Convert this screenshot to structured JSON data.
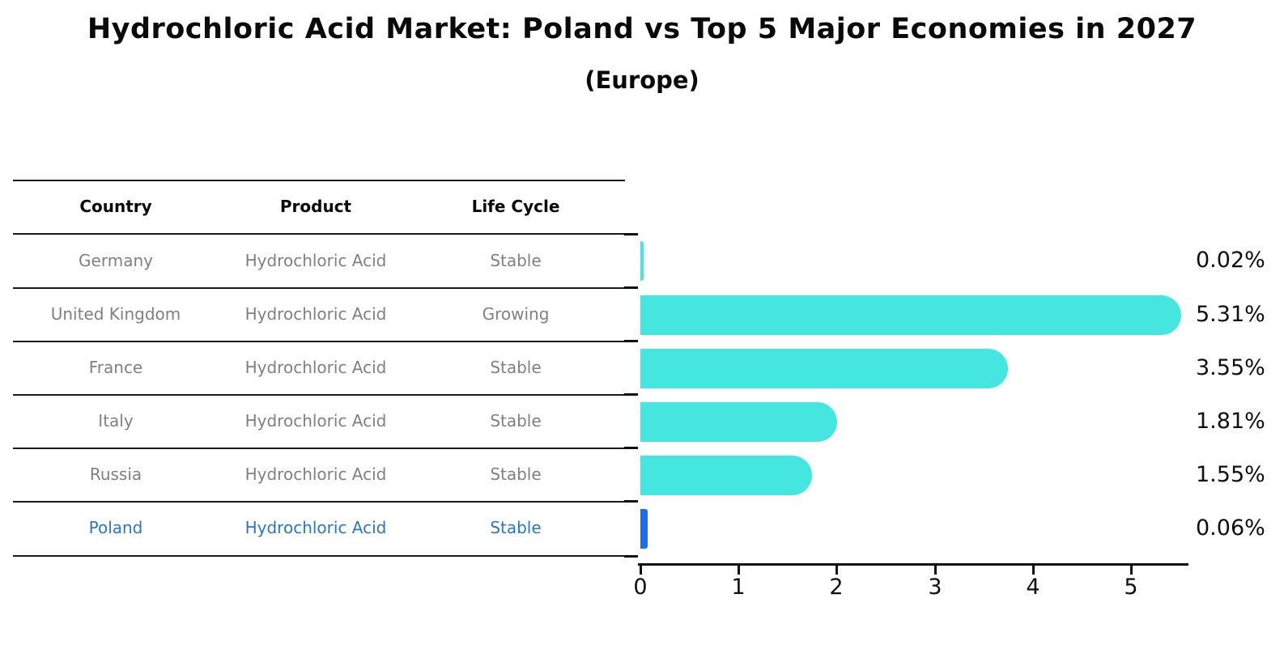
{
  "title": "Hydrochloric Acid Market: Poland vs Top 5 Major Economies in 2027",
  "subtitle": "(Europe)",
  "table": {
    "headers": [
      "Country",
      "Product",
      "Life Cycle"
    ],
    "rows": [
      {
        "country": "Germany",
        "product": "Hydrochloric Acid",
        "life_cycle": "Stable",
        "highlight": false
      },
      {
        "country": "United Kingdom",
        "product": "Hydrochloric Acid",
        "life_cycle": "Growing",
        "highlight": false
      },
      {
        "country": "France",
        "product": "Hydrochloric Acid",
        "life_cycle": "Stable",
        "highlight": false
      },
      {
        "country": "Italy",
        "product": "Hydrochloric Acid",
        "life_cycle": "Stable",
        "highlight": false
      },
      {
        "country": "Russia",
        "product": "Hydrochloric Acid",
        "life_cycle": "Stable",
        "highlight": false
      },
      {
        "country": "Poland",
        "product": "Hydrochloric Acid",
        "life_cycle": "Stable",
        "highlight": true
      }
    ]
  },
  "chart_data": {
    "type": "bar",
    "orientation": "horizontal",
    "title": "Hydrochloric Acid Market: Poland vs Top 5 Major Economies in 2027 (Europe)",
    "categories": [
      "Germany",
      "United Kingdom",
      "France",
      "Italy",
      "Russia",
      "Poland"
    ],
    "values": [
      0.02,
      5.31,
      3.55,
      1.81,
      1.55,
      0.06
    ],
    "value_labels": [
      "0.02%",
      "5.31%",
      "3.55%",
      "1.81%",
      "1.55%",
      "0.06%"
    ],
    "x_ticks": [
      0,
      1,
      2,
      3,
      4,
      5
    ],
    "x_tick_labels": [
      "0",
      "1",
      "2",
      "3",
      "4",
      "5"
    ],
    "xlim": [
      0,
      5.6
    ],
    "grid": false,
    "legend": null,
    "bar_color": "#45e6e0",
    "highlight_bar_color": "#1e6ee6",
    "highlight_index": 5
  },
  "colors": {
    "row_text": "#808080",
    "highlight_text": "#2878c8",
    "header_text": "#0a0a0a",
    "axis": "#111111",
    "background": "#ffffff"
  }
}
